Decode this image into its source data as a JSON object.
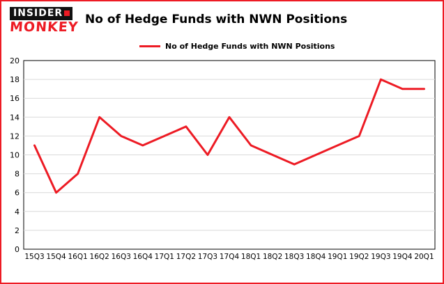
{
  "header": {
    "logo": {
      "line1": "INSIDER",
      "line2": "MONKEY"
    },
    "title": "No of Hedge Funds with NWN Positions"
  },
  "legend": {
    "label": "No of Hedge Funds with NWN Positions",
    "color": "#ed1b24"
  },
  "chart_data": {
    "type": "line",
    "title": "No of Hedge Funds with NWN Positions",
    "categories": [
      "15Q3",
      "15Q4",
      "16Q1",
      "16Q2",
      "16Q3",
      "16Q4",
      "17Q1",
      "17Q2",
      "17Q3",
      "17Q4",
      "18Q1",
      "18Q2",
      "18Q3",
      "18Q4",
      "19Q1",
      "19Q2",
      "19Q3",
      "19Q4",
      "20Q1"
    ],
    "values": [
      11,
      6,
      8,
      14,
      12,
      11,
      12,
      13,
      10,
      14,
      11,
      10,
      9,
      10,
      11,
      12,
      18,
      17,
      17
    ],
    "xlabel": "",
    "ylabel": "",
    "ylim": [
      0,
      20
    ],
    "yticks": [
      0,
      2,
      4,
      6,
      8,
      10,
      12,
      14,
      16,
      18,
      20
    ],
    "grid": true,
    "grid_color": "#d9d9d9",
    "line_color": "#ed1b24",
    "axis_color": "#000000",
    "legend_position": "top-left"
  }
}
